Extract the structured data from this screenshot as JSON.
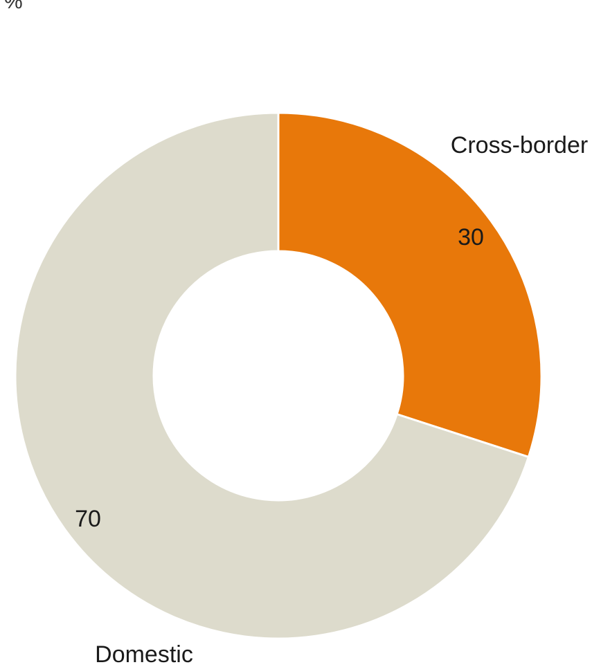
{
  "chart_data": {
    "type": "pie",
    "variant": "donut",
    "unit": "%",
    "start": "12 o'clock",
    "direction": "clockwise",
    "slices": [
      {
        "label": "Cross-border",
        "value": 30,
        "value_label": "30",
        "color": "#E8780A"
      },
      {
        "label": "Domestic",
        "value": 70,
        "value_label": "70",
        "color": "#DDDBCC"
      }
    ]
  }
}
